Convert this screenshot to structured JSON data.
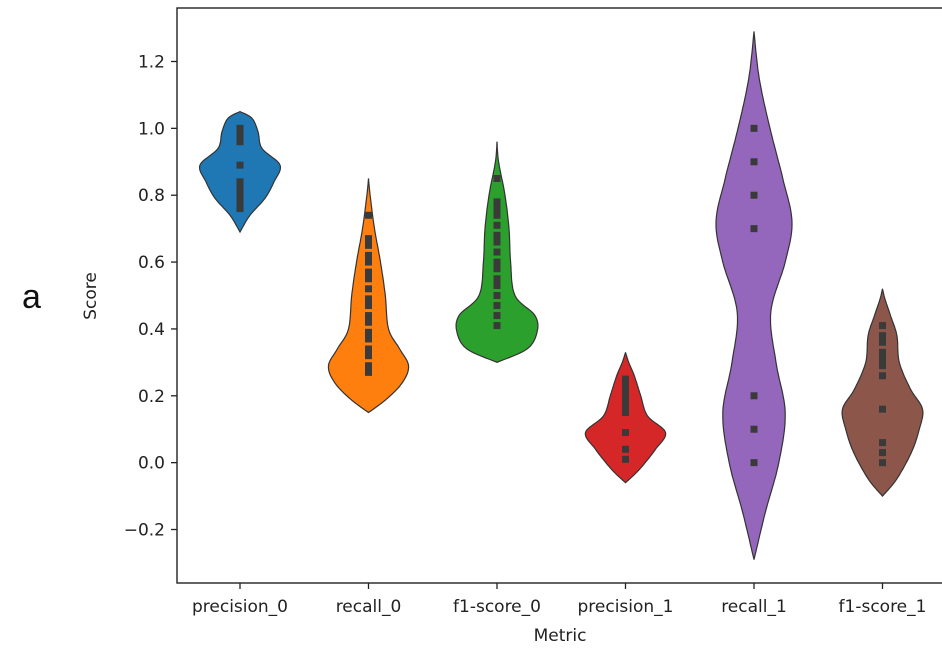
{
  "panel_label": "a",
  "chart_data": {
    "type": "violin",
    "xlabel": "Metric",
    "ylabel": "Score",
    "ylim": [
      -0.36,
      1.36
    ],
    "yticks": [
      -0.2,
      0.0,
      0.2,
      0.4,
      0.6,
      0.8,
      1.0,
      1.2
    ],
    "ytick_labels": [
      "−0.2",
      "0.0",
      "0.2",
      "0.4",
      "0.6",
      "0.8",
      "1.0",
      "1.2"
    ],
    "grid": false,
    "categories": [
      "precision_0",
      "recall_0",
      "f1-score_0",
      "precision_1",
      "recall_1",
      "f1-score_1"
    ],
    "series": [
      {
        "category": "precision_0",
        "color": "#1f77b4",
        "points": [
          1.0,
          0.98,
          0.96,
          0.89,
          0.84,
          0.82,
          0.8,
          0.78,
          0.76
        ],
        "profile": [
          [
            0.69,
            0.0
          ],
          [
            0.74,
            0.25
          ],
          [
            0.79,
            0.62
          ],
          [
            0.84,
            0.85
          ],
          [
            0.89,
            1.0
          ],
          [
            0.94,
            0.55
          ],
          [
            0.99,
            0.45
          ],
          [
            1.03,
            0.3
          ],
          [
            1.05,
            0.0
          ]
        ]
      },
      {
        "category": "recall_0",
        "color": "#ff7f0e",
        "points": [
          0.74,
          0.67,
          0.65,
          0.62,
          0.6,
          0.57,
          0.55,
          0.52,
          0.49,
          0.47,
          0.44,
          0.42,
          0.39,
          0.37,
          0.34,
          0.32,
          0.29,
          0.27
        ],
        "profile": [
          [
            0.15,
            0.0
          ],
          [
            0.19,
            0.45
          ],
          [
            0.24,
            0.85
          ],
          [
            0.29,
            1.0
          ],
          [
            0.34,
            0.78
          ],
          [
            0.4,
            0.5
          ],
          [
            0.5,
            0.42
          ],
          [
            0.6,
            0.3
          ],
          [
            0.7,
            0.15
          ],
          [
            0.8,
            0.04
          ],
          [
            0.85,
            0.0
          ]
        ]
      },
      {
        "category": "f1-score_0",
        "color": "#2ca02c",
        "points": [
          0.85,
          0.78,
          0.76,
          0.74,
          0.71,
          0.68,
          0.66,
          0.63,
          0.6,
          0.58,
          0.55,
          0.53,
          0.5,
          0.47,
          0.44,
          0.41
        ],
        "profile": [
          [
            0.3,
            0.0
          ],
          [
            0.34,
            0.75
          ],
          [
            0.39,
            1.0
          ],
          [
            0.44,
            0.95
          ],
          [
            0.5,
            0.45
          ],
          [
            0.6,
            0.34
          ],
          [
            0.7,
            0.3
          ],
          [
            0.8,
            0.2
          ],
          [
            0.9,
            0.04
          ],
          [
            0.96,
            0.0
          ]
        ]
      },
      {
        "category": "precision_1",
        "color": "#d62728",
        "points": [
          0.25,
          0.23,
          0.21,
          0.19,
          0.17,
          0.15,
          0.09,
          0.04,
          0.01
        ],
        "profile": [
          [
            -0.06,
            0.0
          ],
          [
            -0.02,
            0.35
          ],
          [
            0.04,
            0.75
          ],
          [
            0.09,
            1.0
          ],
          [
            0.14,
            0.55
          ],
          [
            0.2,
            0.38
          ],
          [
            0.26,
            0.22
          ],
          [
            0.3,
            0.08
          ],
          [
            0.33,
            0.0
          ]
        ]
      },
      {
        "category": "recall_1",
        "color": "#9467bd",
        "points": [
          1.0,
          0.9,
          0.8,
          0.7,
          0.2,
          0.1,
          0.0
        ],
        "profile": [
          [
            -0.29,
            0.0
          ],
          [
            -0.15,
            0.28
          ],
          [
            0.0,
            0.62
          ],
          [
            0.15,
            0.78
          ],
          [
            0.3,
            0.55
          ],
          [
            0.45,
            0.42
          ],
          [
            0.6,
            0.78
          ],
          [
            0.72,
            0.95
          ],
          [
            0.85,
            0.72
          ],
          [
            1.0,
            0.4
          ],
          [
            1.15,
            0.13
          ],
          [
            1.29,
            0.0
          ]
        ]
      },
      {
        "category": "f1-score_1",
        "color": "#8c564b",
        "points": [
          0.41,
          0.38,
          0.36,
          0.33,
          0.31,
          0.29,
          0.26,
          0.16,
          0.06,
          0.03,
          0.0
        ],
        "profile": [
          [
            -0.1,
            0.0
          ],
          [
            -0.05,
            0.35
          ],
          [
            0.03,
            0.72
          ],
          [
            0.1,
            0.92
          ],
          [
            0.16,
            1.0
          ],
          [
            0.22,
            0.7
          ],
          [
            0.3,
            0.42
          ],
          [
            0.38,
            0.36
          ],
          [
            0.44,
            0.2
          ],
          [
            0.49,
            0.06
          ],
          [
            0.52,
            0.0
          ]
        ]
      }
    ]
  }
}
